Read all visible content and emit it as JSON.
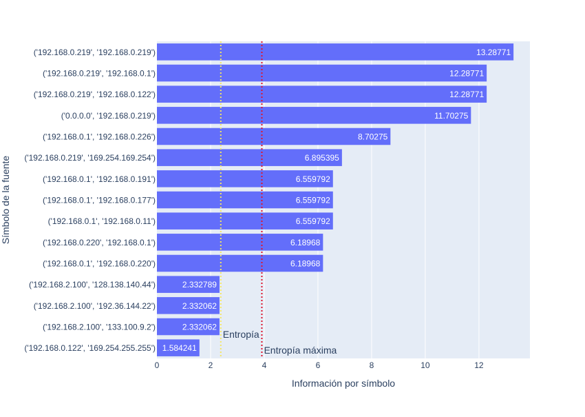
{
  "chart_data": {
    "type": "bar",
    "orientation": "horizontal",
    "categories": [
      "('192.168.0.219', '192.168.0.219')",
      "('192.168.0.219', '192.168.0.1')",
      "('192.168.0.219', '192.168.0.122')",
      "('0.0.0.0', '192.168.0.219')",
      "('192.168.0.1', '192.168.0.226')",
      "('192.168.0.219', '169.254.169.254')",
      "('192.168.0.1', '192.168.0.191')",
      "('192.168.0.1', '192.168.0.177')",
      "('192.168.0.1', '192.168.0.11')",
      "('192.168.0.220', '192.168.0.1')",
      "('192.168.0.1', '192.168.0.220')",
      "('192.168.2.100', '128.138.140.44')",
      "('192.168.2.100', '192.36.144.22')",
      "('192.168.2.100', '133.100.9.2')",
      "('192.168.0.122', '169.254.255.255')"
    ],
    "values": [
      13.28771,
      12.28771,
      12.28771,
      11.70275,
      8.70275,
      6.895395,
      6.559792,
      6.559792,
      6.559792,
      6.18968,
      6.18968,
      2.332789,
      2.332062,
      2.332062,
      1.584241
    ],
    "data_labels": [
      "13.28771",
      "12.28771",
      "12.28771",
      "11.70275",
      "8.70275",
      "6.895395",
      "6.559792",
      "6.559792",
      "6.559792",
      "6.18968",
      "6.18968",
      "2.332789",
      "2.332062",
      "2.332062",
      "1.584241"
    ],
    "xlabel": "Información por símbolo",
    "ylabel": "Símbolo de la fuente",
    "xlim": [
      0,
      13.9
    ],
    "xticks": [
      0,
      2,
      4,
      6,
      8,
      10,
      12
    ],
    "xtick_labels": [
      "0",
      "2",
      "4",
      "6",
      "8",
      "10",
      "12"
    ],
    "grid": true,
    "reference_lines": [
      {
        "label": "Entropía",
        "x": 2.38,
        "color": "#f5e663",
        "style": "dotted"
      },
      {
        "label": "Entropía máxima",
        "x": 3.91,
        "color": "#e0152d",
        "style": "dotted"
      }
    ],
    "colors": {
      "bar": "#636efa",
      "plot_bg": "#e5ecf6",
      "grid": "#ffffff",
      "text": "#2a3f5f"
    }
  }
}
